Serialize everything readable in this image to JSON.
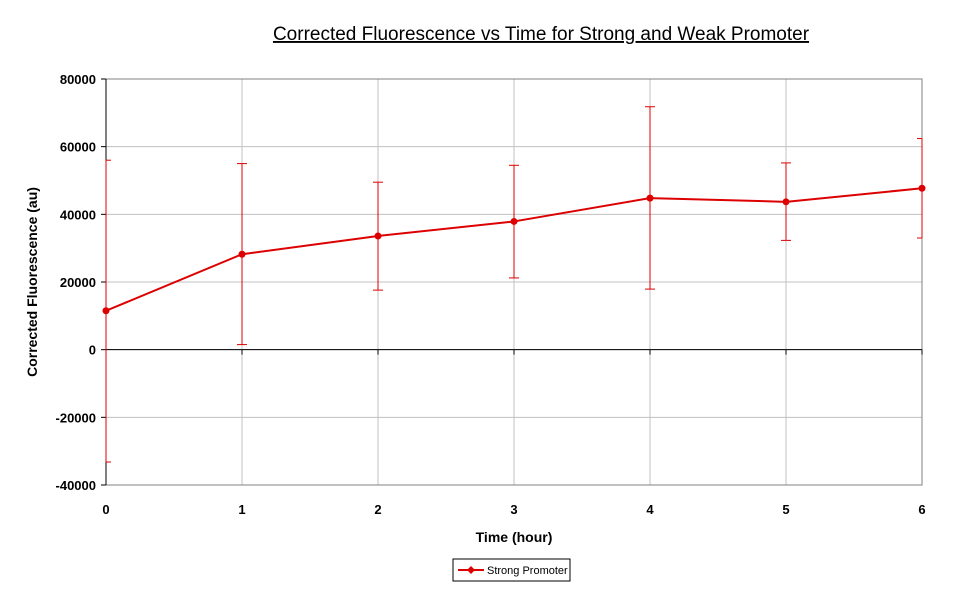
{
  "chart_data": {
    "type": "line",
    "title": " Corrected Fluorescence vs Time for Strong and Weak Promoter",
    "xlabel": "Time (hour)",
    "ylabel": "Corrected Fluorescence (au)",
    "x": [
      0,
      1,
      2,
      3,
      4,
      5,
      6
    ],
    "xlim": [
      0,
      6
    ],
    "ylim": [
      -40000,
      80000
    ],
    "x_ticks": [
      "0",
      "1",
      "2",
      "3",
      "4",
      "5",
      "6"
    ],
    "y_ticks": [
      "80000",
      "60000",
      "40000",
      "20000",
      "0",
      "-20000",
      "-40000"
    ],
    "y_tick_values": [
      80000,
      60000,
      40000,
      20000,
      0,
      -20000,
      -40000
    ],
    "grid": true,
    "legend_position": "bottom-center",
    "series": [
      {
        "name": "Strong Promoter",
        "color": "#dd0000",
        "values": [
          11500,
          28200,
          33600,
          37900,
          44800,
          43700,
          47700
        ],
        "error_upper": [
          56000,
          55000,
          49500,
          54500,
          71800,
          55200,
          62400
        ],
        "error_lower": [
          -33200,
          1500,
          17600,
          21200,
          17900,
          32300,
          33000
        ]
      }
    ]
  }
}
